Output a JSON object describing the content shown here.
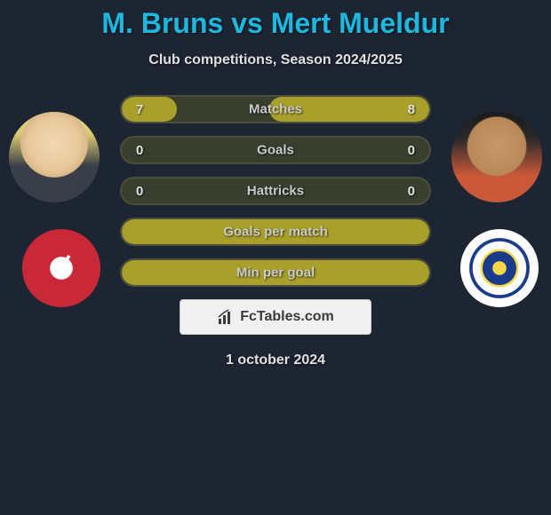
{
  "title": "M. Bruns vs Mert Mueldur",
  "subtitle": "Club competitions, Season 2024/2025",
  "date": "1 october 2024",
  "badge": {
    "text": "FcTables.com"
  },
  "colors": {
    "bg": "#1e2532",
    "title": "#1db8e0",
    "bar_fill": "#a8a02a",
    "bar_bg": "#3a3e2e",
    "badge_bg": "#f0f0f0"
  },
  "bars": [
    {
      "label": "Matches",
      "left": "7",
      "right": "8",
      "left_pct": 18,
      "right_pct": 52
    },
    {
      "label": "Goals",
      "left": "0",
      "right": "0",
      "left_pct": 0,
      "right_pct": 0
    },
    {
      "label": "Hattricks",
      "left": "0",
      "right": "0",
      "left_pct": 0,
      "right_pct": 0
    },
    {
      "label": "Goals per match",
      "left": "",
      "right": "",
      "full": true
    },
    {
      "label": "Min per goal",
      "left": "",
      "right": "",
      "full": true
    }
  ]
}
